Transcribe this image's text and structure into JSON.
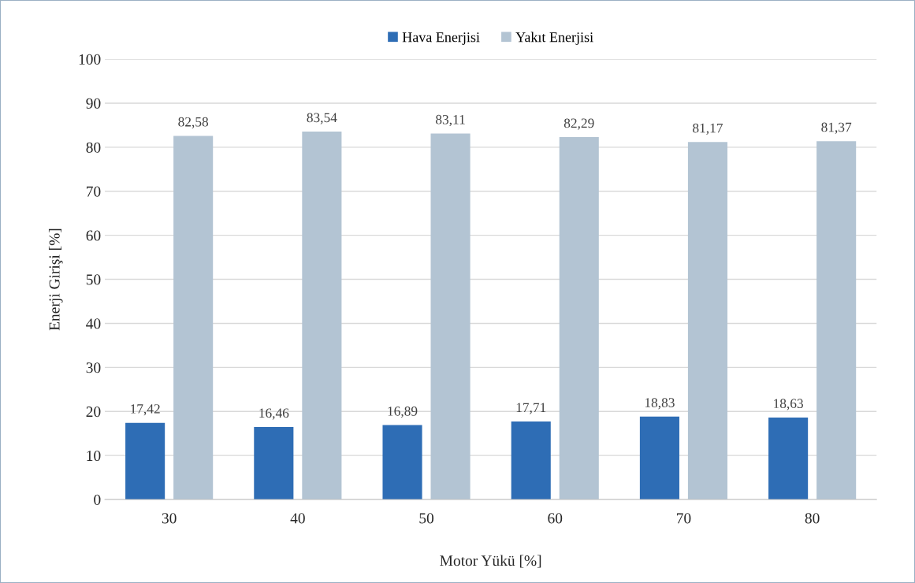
{
  "chart_data": {
    "type": "bar",
    "categories": [
      "30",
      "40",
      "50",
      "60",
      "70",
      "80"
    ],
    "xlabel": "Motor Yükü [%]",
    "ylabel": "Enerji Girişi [%]",
    "ylim": [
      0,
      100
    ],
    "yticks": [
      0,
      10,
      20,
      30,
      40,
      50,
      60,
      70,
      80,
      90,
      100
    ],
    "grid": "y",
    "legend": "top",
    "series": [
      {
        "name": "Hava Enerjisi",
        "color": "#2e6db5",
        "values": [
          17.42,
          16.46,
          16.89,
          17.71,
          18.83,
          18.63
        ],
        "value_labels": [
          "17,42",
          "16,46",
          "16,89",
          "17,71",
          "18,83",
          "18,63"
        ]
      },
      {
        "name": "Yakıt Enerjisi",
        "color": "#b3c4d3",
        "values": [
          82.58,
          83.54,
          83.11,
          82.29,
          81.17,
          81.37
        ],
        "value_labels": [
          "82,58",
          "83,54",
          "83,11",
          "82,29",
          "81,17",
          "81,37"
        ]
      }
    ]
  }
}
